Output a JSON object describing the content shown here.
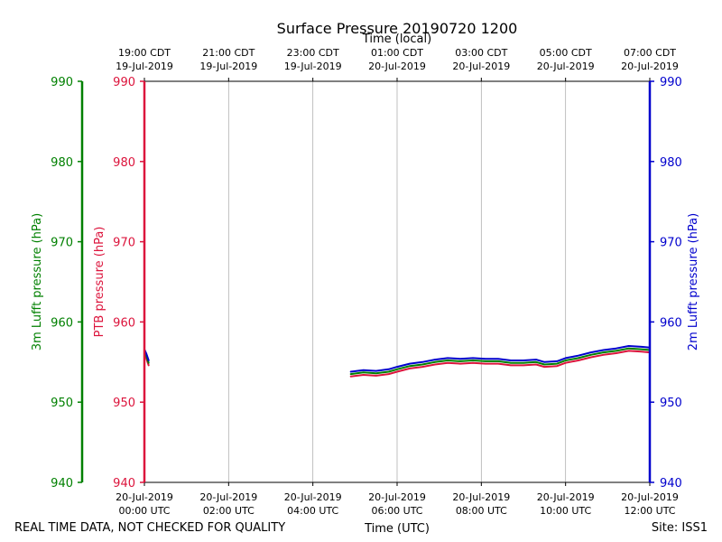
{
  "chart_data": {
    "type": "line",
    "title": "Surface Pressure 20190720 1200",
    "xlabel_bottom": "Time (UTC)",
    "xlabel_top": "Time (local)",
    "ylabel_left_outer": "3m Lufft pressure (hPa)",
    "ylabel_left_inner": "PTB pressure (hPa)",
    "ylabel_right": "2m Lufft pressure (hPa)",
    "ylim": [
      940,
      990
    ],
    "xlim_hours": [
      0,
      12
    ],
    "yticks": [
      940,
      950,
      960,
      970,
      980,
      990
    ],
    "grid": "vertical",
    "bottom_ticks": [
      {
        "hour": 0,
        "line1": "20-Jul-2019",
        "line2": "00:00 UTC"
      },
      {
        "hour": 2,
        "line1": "20-Jul-2019",
        "line2": "02:00 UTC"
      },
      {
        "hour": 4,
        "line1": "20-Jul-2019",
        "line2": "04:00 UTC"
      },
      {
        "hour": 6,
        "line1": "20-Jul-2019",
        "line2": "06:00 UTC"
      },
      {
        "hour": 8,
        "line1": "20-Jul-2019",
        "line2": "08:00 UTC"
      },
      {
        "hour": 10,
        "line1": "20-Jul-2019",
        "line2": "10:00 UTC"
      },
      {
        "hour": 12,
        "line1": "20-Jul-2019",
        "line2": "12:00 UTC"
      }
    ],
    "top_ticks": [
      {
        "hour": 0,
        "line1": "19:00 CDT",
        "line2": "19-Jul-2019"
      },
      {
        "hour": 2,
        "line1": "21:00 CDT",
        "line2": "19-Jul-2019"
      },
      {
        "hour": 4,
        "line1": "23:00 CDT",
        "line2": "19-Jul-2019"
      },
      {
        "hour": 6,
        "line1": "01:00 CDT",
        "line2": "20-Jul-2019"
      },
      {
        "hour": 8,
        "line1": "03:00 CDT",
        "line2": "20-Jul-2019"
      },
      {
        "hour": 10,
        "line1": "05:00 CDT",
        "line2": "20-Jul-2019"
      },
      {
        "hour": 12,
        "line1": "07:00 CDT",
        "line2": "20-Jul-2019"
      }
    ],
    "series": [
      {
        "name": "PTB pressure",
        "color": "#dc143c",
        "segments": [
          [
            [
              0.0,
              956.0
            ],
            [
              0.05,
              955.4
            ],
            [
              0.1,
              954.6
            ]
          ],
          [
            [
              4.9,
              953.2
            ],
            [
              5.2,
              953.4
            ],
            [
              5.5,
              953.3
            ],
            [
              5.8,
              953.5
            ],
            [
              6.0,
              953.8
            ],
            [
              6.3,
              954.2
            ],
            [
              6.6,
              954.4
            ],
            [
              6.9,
              954.7
            ],
            [
              7.2,
              954.9
            ],
            [
              7.5,
              954.8
            ],
            [
              7.8,
              954.9
            ],
            [
              8.1,
              954.8
            ],
            [
              8.4,
              954.8
            ],
            [
              8.7,
              954.6
            ],
            [
              9.0,
              954.6
            ],
            [
              9.3,
              954.7
            ],
            [
              9.5,
              954.4
            ],
            [
              9.8,
              954.5
            ],
            [
              10.0,
              954.9
            ],
            [
              10.3,
              955.2
            ],
            [
              10.6,
              955.6
            ],
            [
              10.9,
              955.9
            ],
            [
              11.2,
              956.1
            ],
            [
              11.5,
              956.4
            ],
            [
              11.8,
              956.3
            ],
            [
              12.0,
              956.2
            ]
          ]
        ]
      },
      {
        "name": "3m Lufft pressure",
        "color": "#008000",
        "segments": [
          [
            [
              0.0,
              956.3
            ],
            [
              0.05,
              955.7
            ],
            [
              0.1,
              954.9
            ]
          ],
          [
            [
              4.9,
              953.5
            ],
            [
              5.2,
              953.7
            ],
            [
              5.5,
              953.6
            ],
            [
              5.8,
              953.8
            ],
            [
              6.0,
              954.1
            ],
            [
              6.3,
              954.5
            ],
            [
              6.6,
              954.7
            ],
            [
              6.9,
              955.0
            ],
            [
              7.2,
              955.2
            ],
            [
              7.5,
              955.1
            ],
            [
              7.8,
              955.2
            ],
            [
              8.1,
              955.1
            ],
            [
              8.4,
              955.1
            ],
            [
              8.7,
              954.9
            ],
            [
              9.0,
              954.9
            ],
            [
              9.3,
              955.0
            ],
            [
              9.5,
              954.7
            ],
            [
              9.8,
              954.8
            ],
            [
              10.0,
              955.2
            ],
            [
              10.3,
              955.5
            ],
            [
              10.6,
              955.9
            ],
            [
              10.9,
              956.2
            ],
            [
              11.2,
              956.4
            ],
            [
              11.5,
              956.7
            ],
            [
              11.8,
              956.6
            ],
            [
              12.0,
              956.5
            ]
          ]
        ]
      },
      {
        "name": "2m Lufft pressure",
        "color": "#0000cd",
        "segments": [
          [
            [
              0.0,
              956.6
            ],
            [
              0.05,
              956.0
            ],
            [
              0.1,
              955.2
            ]
          ],
          [
            [
              4.9,
              953.8
            ],
            [
              5.2,
              954.0
            ],
            [
              5.5,
              953.9
            ],
            [
              5.8,
              954.1
            ],
            [
              6.0,
              954.4
            ],
            [
              6.3,
              954.8
            ],
            [
              6.6,
              955.0
            ],
            [
              6.9,
              955.3
            ],
            [
              7.2,
              955.5
            ],
            [
              7.5,
              955.4
            ],
            [
              7.8,
              955.5
            ],
            [
              8.1,
              955.4
            ],
            [
              8.4,
              955.4
            ],
            [
              8.7,
              955.2
            ],
            [
              9.0,
              955.2
            ],
            [
              9.3,
              955.3
            ],
            [
              9.5,
              955.0
            ],
            [
              9.8,
              955.1
            ],
            [
              10.0,
              955.5
            ],
            [
              10.3,
              955.8
            ],
            [
              10.6,
              956.2
            ],
            [
              10.9,
              956.5
            ],
            [
              11.2,
              956.7
            ],
            [
              11.5,
              957.0
            ],
            [
              11.8,
              956.9
            ],
            [
              12.0,
              956.8
            ]
          ]
        ]
      }
    ]
  },
  "footer": {
    "left": "REAL TIME DATA, NOT CHECKED FOR QUALITY",
    "right": "Site: ISS1"
  },
  "colors": {
    "ptb": "#dc143c",
    "lufft3m": "#008000",
    "lufft2m": "#0000cd",
    "grid": "#b0b0b0",
    "axis": "#000000"
  }
}
